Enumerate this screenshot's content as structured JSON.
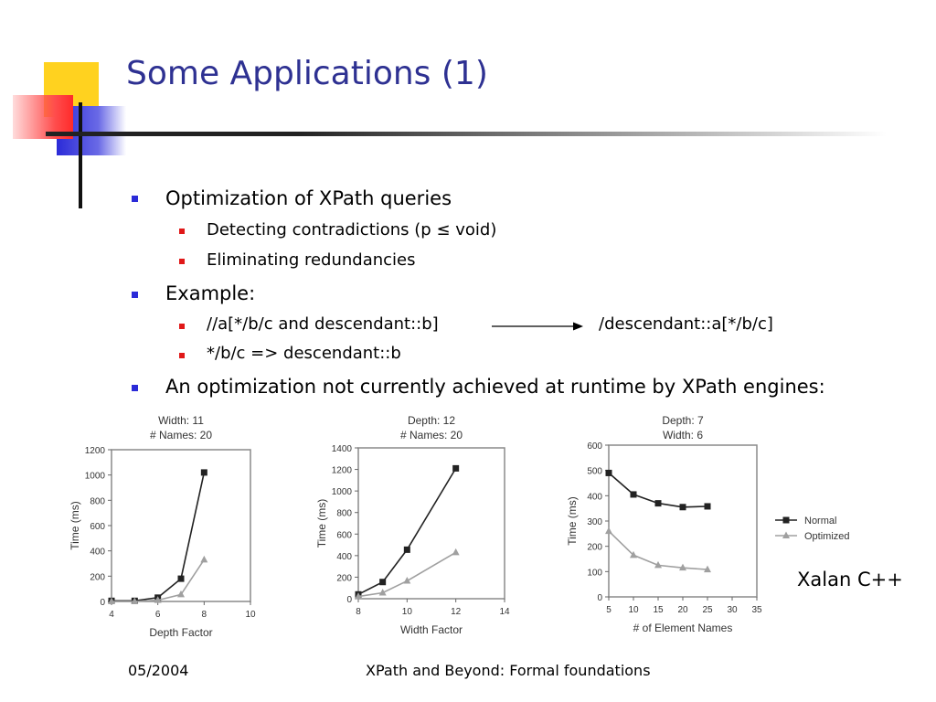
{
  "slide": {
    "title": "Some Applications (1)",
    "bullets": [
      {
        "text": "Optimization of XPath queries",
        "sub": [
          "Detecting contradictions (p ≤ void)",
          "Eliminating redundancies"
        ]
      },
      {
        "text": "Example:",
        "sub": [
          "//a[*/b/c and descendant::b]",
          "*/b/c => descendant::b"
        ],
        "example_result": "/descendant::a[*/b/c]"
      },
      {
        "text": "An optimization not currently achieved at runtime by XPath engines:",
        "sub": []
      }
    ],
    "engine_label": "Xalan C++",
    "footer": {
      "date": "05/2004",
      "center": "XPath and Beyond: Formal foundations"
    }
  },
  "chart_data": [
    {
      "type": "line",
      "title": "Width: 11",
      "subtitle": "# Names: 20",
      "xlabel": "Depth Factor",
      "ylabel": "Time (ms)",
      "xlim": [
        4,
        10
      ],
      "ylim": [
        0,
        1200
      ],
      "xticks": [
        4,
        6,
        8,
        10
      ],
      "yticks": [
        0,
        200,
        400,
        600,
        800,
        1000,
        1200
      ],
      "series": [
        {
          "marker": "square",
          "color": "#222222",
          "x": [
            4,
            5,
            6,
            7,
            8
          ],
          "y": [
            5,
            5,
            30,
            180,
            1020
          ]
        },
        {
          "marker": "triangle",
          "color": "#a0a0a0",
          "x": [
            4,
            5,
            6,
            7,
            8
          ],
          "y": [
            0,
            0,
            10,
            55,
            330
          ]
        }
      ]
    },
    {
      "type": "line",
      "title": "Depth: 12",
      "subtitle": "# Names: 20",
      "xlabel": "Width Factor",
      "ylabel": "Time (ms)",
      "xlim": [
        8,
        14
      ],
      "ylim": [
        0,
        1400
      ],
      "xticks": [
        8,
        10,
        12,
        14
      ],
      "yticks": [
        0,
        200,
        400,
        600,
        800,
        1000,
        1200,
        1400
      ],
      "series": [
        {
          "marker": "square",
          "color": "#222222",
          "x": [
            8,
            9,
            10,
            12
          ],
          "y": [
            40,
            155,
            455,
            1210
          ]
        },
        {
          "marker": "triangle",
          "color": "#a0a0a0",
          "x": [
            8,
            9,
            10,
            12
          ],
          "y": [
            20,
            55,
            165,
            430
          ]
        }
      ]
    },
    {
      "type": "line",
      "title": "Depth: 7",
      "subtitle": "Width: 6",
      "xlabel": "# of Element Names",
      "ylabel": "Time (ms)",
      "xlim": [
        5,
        35
      ],
      "ylim": [
        0,
        600
      ],
      "xticks": [
        5,
        10,
        15,
        20,
        25,
        30,
        35
      ],
      "yticks": [
        0,
        100,
        200,
        300,
        400,
        500,
        600
      ],
      "legend": [
        "Normal",
        "Optimized"
      ],
      "legend_position": "right",
      "series": [
        {
          "name": "Normal",
          "marker": "square",
          "color": "#222222",
          "x": [
            5,
            10,
            15,
            20,
            25
          ],
          "y": [
            490,
            405,
            370,
            355,
            358
          ]
        },
        {
          "name": "Optimized",
          "marker": "triangle",
          "color": "#a0a0a0",
          "x": [
            5,
            10,
            15,
            20,
            25
          ],
          "y": [
            260,
            165,
            125,
            115,
            108
          ]
        }
      ]
    }
  ]
}
